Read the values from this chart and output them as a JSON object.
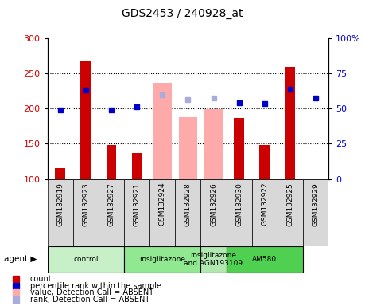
{
  "title": "GDS2453 / 240928_at",
  "samples": [
    "GSM132919",
    "GSM132923",
    "GSM132927",
    "GSM132921",
    "GSM132924",
    "GSM132928",
    "GSM132926",
    "GSM132930",
    "GSM132922",
    "GSM132925",
    "GSM132929"
  ],
  "count_values": [
    115,
    268,
    148,
    137,
    null,
    null,
    null,
    187,
    148,
    259,
    null
  ],
  "count_absent": [
    null,
    null,
    null,
    null,
    237,
    188,
    199,
    null,
    null,
    null,
    null
  ],
  "rank_values": [
    198,
    226,
    198,
    203,
    null,
    null,
    null,
    208,
    207,
    227,
    215
  ],
  "rank_absent": [
    null,
    null,
    null,
    null,
    220,
    213,
    215,
    null,
    null,
    null,
    null
  ],
  "ylim": [
    100,
    300
  ],
  "y2lim": [
    0,
    100
  ],
  "yticks": [
    100,
    150,
    200,
    250,
    300
  ],
  "y2ticks": [
    0,
    25,
    50,
    75,
    100
  ],
  "agent_groups": [
    {
      "label": "control",
      "start": 0,
      "end": 3,
      "color": "#c8f0c8"
    },
    {
      "label": "rosiglitazone",
      "start": 3,
      "end": 6,
      "color": "#90e890"
    },
    {
      "label": "rosiglitazone\nand AGN193109",
      "start": 6,
      "end": 7,
      "color": "#b0e8b0"
    },
    {
      "label": "AM580",
      "start": 7,
      "end": 10,
      "color": "#50d050"
    }
  ],
  "count_color": "#cc0000",
  "count_absent_color": "#ffaaaa",
  "rank_color": "#0000cc",
  "rank_absent_color": "#aaaadd",
  "gray_bg": "#d8d8d8",
  "legend_labels": [
    "count",
    "percentile rank within the sample",
    "value, Detection Call = ABSENT",
    "rank, Detection Call = ABSENT"
  ],
  "legend_colors": [
    "#cc0000",
    "#0000cc",
    "#ffaaaa",
    "#aaaadd"
  ]
}
